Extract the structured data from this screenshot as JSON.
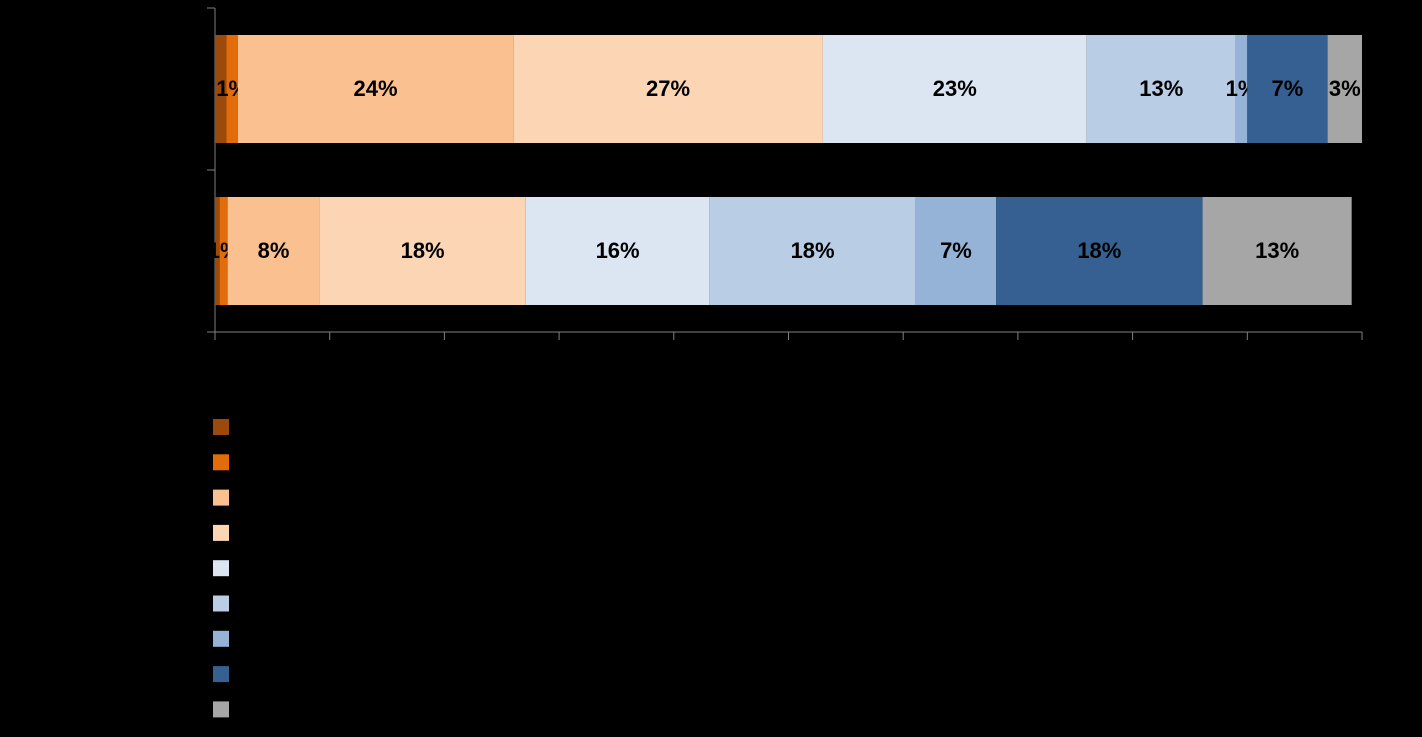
{
  "chart_data": {
    "type": "stacked-barh",
    "categories": [
      null,
      null
    ],
    "series": [
      {
        "color": "#9c4a0c",
        "values": [
          1,
          0.4
        ],
        "value_labels": [
          null,
          null
        ]
      },
      {
        "color": "#e36c0a",
        "values": [
          1,
          0.7
        ],
        "value_labels": [
          "1%",
          "1%"
        ]
      },
      {
        "color": "#fac090",
        "values": [
          24,
          8
        ],
        "value_labels": [
          "24%",
          "8%"
        ]
      },
      {
        "color": "#fcd5b5",
        "values": [
          27,
          18
        ],
        "value_labels": [
          "27%",
          "18%"
        ]
      },
      {
        "color": "#dce6f2",
        "values": [
          23,
          16
        ],
        "value_labels": [
          "23%",
          "16%"
        ]
      },
      {
        "color": "#b9cde5",
        "values": [
          13,
          18
        ],
        "value_labels": [
          "13%",
          "18%"
        ]
      },
      {
        "color": "#95b3d7",
        "values": [
          1,
          7
        ],
        "value_labels": [
          "1%",
          "7%"
        ]
      },
      {
        "color": "#376092",
        "values": [
          7,
          18
        ],
        "value_labels": [
          "7%",
          "18%"
        ]
      },
      {
        "color": "#a6a6a6",
        "values": [
          3,
          13
        ],
        "value_labels": [
          "3%",
          "13%"
        ]
      }
    ],
    "xlim": [
      0,
      100
    ],
    "xticks": [
      0,
      10,
      20,
      30,
      40,
      50,
      60,
      70,
      80,
      90,
      100
    ]
  }
}
